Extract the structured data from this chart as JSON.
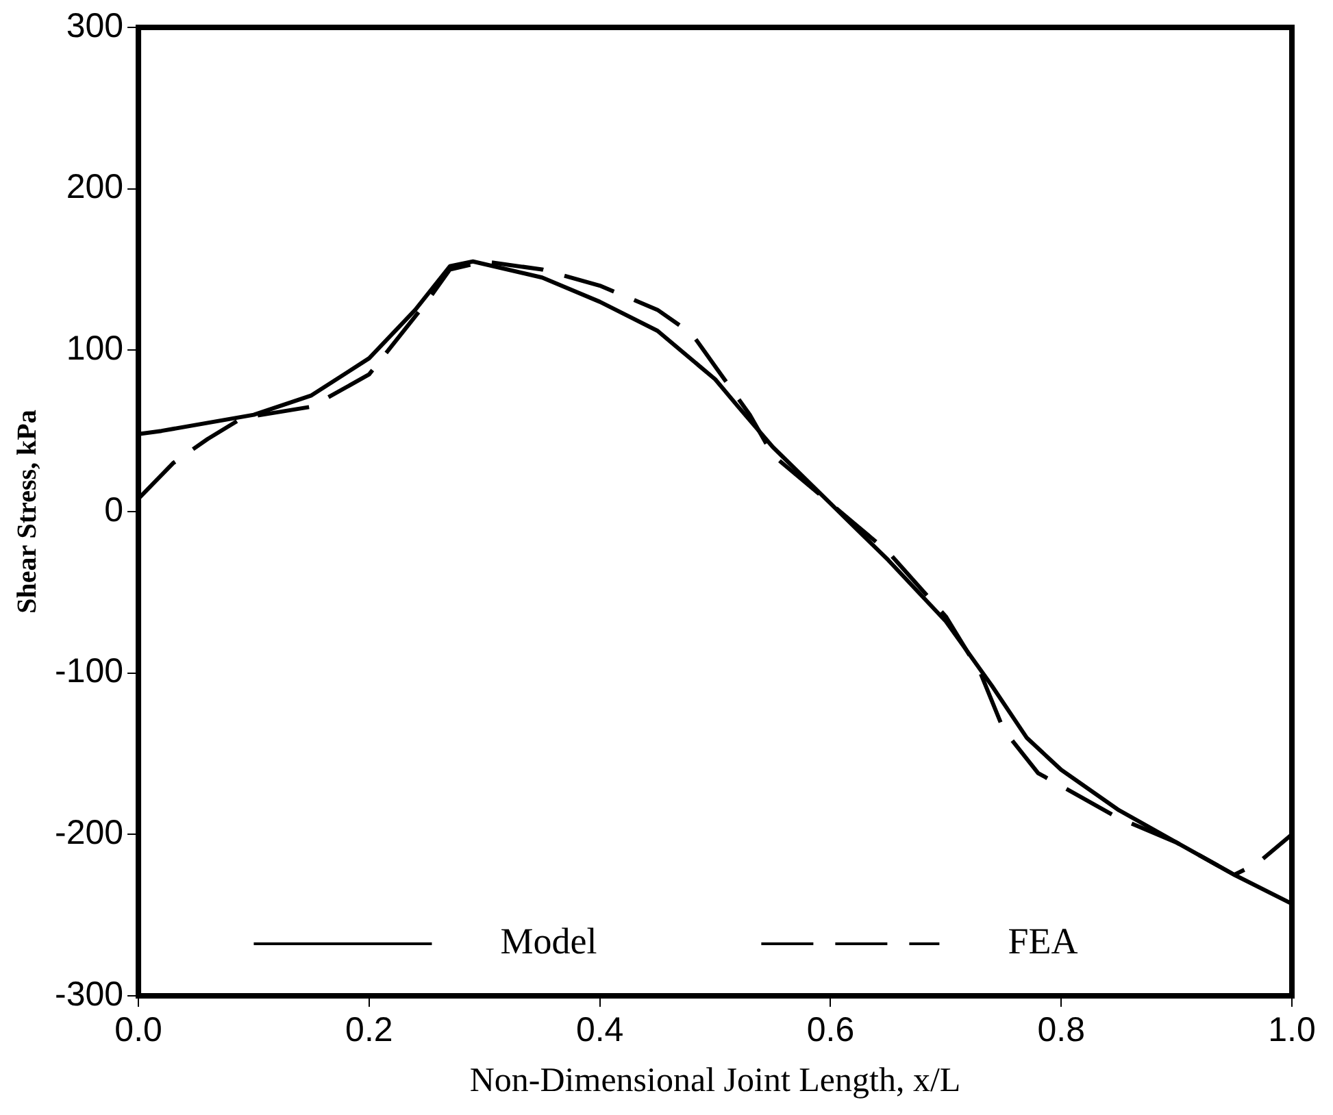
{
  "chart_data": {
    "type": "line",
    "xlabel": "Non-Dimensional Joint Length, x/L",
    "ylabel": "Shear Stress, kPa",
    "xlim": [
      0,
      1
    ],
    "xticks": [
      {
        "value": 0,
        "label": "0.0"
      },
      {
        "value": 0.2,
        "label": "0.2"
      },
      {
        "value": 0.4,
        "label": "0.4"
      },
      {
        "value": 0.6,
        "label": "0.6"
      },
      {
        "value": 0.8,
        "label": "0.8"
      },
      {
        "value": 1,
        "label": "1.0"
      }
    ],
    "ylim": [
      -300,
      300
    ],
    "yticks": [
      -300,
      -200,
      -100,
      0,
      100,
      200,
      300
    ],
    "grid": false,
    "legend": "bottom",
    "marker": "none",
    "series": [
      {
        "name": "Model",
        "color": "#000000",
        "line_style": "solid",
        "x": [
          0,
          0.02,
          0.1,
          0.15,
          0.2,
          0.24,
          0.27,
          0.29,
          0.35,
          0.4,
          0.45,
          0.5,
          0.52,
          0.55,
          0.6,
          0.65,
          0.7,
          0.74,
          0.77,
          0.8,
          0.85,
          0.9,
          0.95,
          1.0
        ],
        "values": [
          48,
          50,
          60,
          72,
          95,
          125,
          152,
          155,
          145,
          130,
          112,
          82,
          65,
          40,
          5,
          -30,
          -68,
          -108,
          -140,
          -160,
          -185,
          -205,
          -225,
          -243
        ]
      },
      {
        "name": "FEA",
        "color": "#000000",
        "line_style": "dashed",
        "x": [
          0,
          0.03,
          0.06,
          0.09,
          0.15,
          0.2,
          0.25,
          0.27,
          0.3,
          0.35,
          0.4,
          0.45,
          0.48,
          0.5,
          0.53,
          0.55,
          0.6,
          0.65,
          0.7,
          0.73,
          0.75,
          0.78,
          0.85,
          0.9,
          0.95,
          0.97,
          1.0
        ],
        "values": [
          8,
          30,
          45,
          58,
          65,
          85,
          130,
          150,
          155,
          150,
          140,
          125,
          110,
          90,
          60,
          35,
          5,
          -25,
          -65,
          -100,
          -135,
          -162,
          -190,
          -205,
          -225,
          -218,
          -200
        ]
      }
    ]
  }
}
